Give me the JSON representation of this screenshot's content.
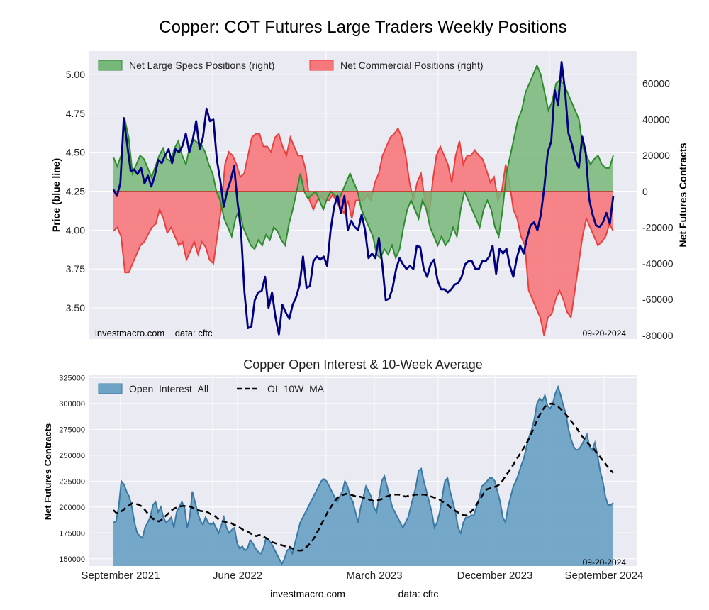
{
  "page": {
    "title": "Copper: COT Futures Large Traders Weekly Positions",
    "footer_left": "investmacro.com",
    "footer_right": "data: cftc"
  },
  "chart_data": [
    {
      "type": "line",
      "panel": "top",
      "ylabel_left": "Price (blue line)",
      "ylabel_right": "Net Futures Contracts",
      "ylim_left": [
        3.3,
        5.15
      ],
      "ylim_right": [
        -82000,
        78000
      ],
      "yticks_left": [
        "3.50",
        "3.75",
        "4.00",
        "4.25",
        "4.50",
        "4.75",
        "5.00"
      ],
      "yticks_right": [
        "-80000",
        "-60000",
        "-40000",
        "-20000",
        "0",
        "20000",
        "40000",
        "60000"
      ],
      "grid": true,
      "legend_position": "top-left",
      "watermark": "investmacro.com    data: cftc",
      "date_label": "09-20-2024",
      "colors": {
        "specs_fill": "#77b779",
        "specs_line": "#2e8b2e",
        "comm_fill": "#f7787b",
        "comm_line": "#e8403f",
        "price_line": "#00007f",
        "bg": "#eaeaf2"
      },
      "series": [
        {
          "name": "Net Large Specs Positions (right)",
          "axis": "right",
          "kind": "area",
          "values": [
            19000,
            14000,
            20000,
            40000,
            30000,
            10000,
            15000,
            20000,
            18000,
            13000,
            8000,
            14000,
            20000,
            24000,
            18000,
            17000,
            24000,
            28000,
            20000,
            15000,
            25000,
            29000,
            27000,
            26000,
            22000,
            15000,
            10000,
            0,
            -5000,
            -15000,
            -20000,
            -25000,
            -15000,
            -10000,
            -20000,
            -25000,
            -30000,
            -32000,
            -27000,
            -30000,
            -24000,
            -27000,
            -20000,
            -22000,
            -27000,
            -30000,
            -18000,
            -10000,
            0,
            10000,
            0,
            -4000,
            -2000,
            0,
            -5000,
            -10000,
            -4000,
            0,
            -2000,
            -5000,
            0,
            5000,
            10000,
            5000,
            0,
            -10000,
            -15000,
            -20000,
            -25000,
            -35000,
            -37000,
            -32000,
            -35000,
            -30000,
            -37000,
            -32000,
            -20000,
            -10000,
            -5000,
            -10000,
            -15000,
            -5000,
            -10000,
            -20000,
            -25000,
            -30000,
            -25000,
            -30000,
            -27000,
            -20000,
            -25000,
            -10000,
            0,
            -5000,
            -10000,
            -15000,
            -20000,
            -10000,
            -5000,
            -10000,
            -20000,
            -25000,
            -10000,
            10000,
            20000,
            30000,
            40000,
            45000,
            55000,
            60000,
            65000,
            70000,
            65000,
            55000,
            45000,
            50000,
            60000,
            62000,
            60000,
            55000,
            50000,
            45000,
            40000,
            25000,
            20000,
            15000,
            18000,
            20000,
            15000,
            13000,
            13000,
            20000
          ]
        },
        {
          "name": "Net Commercial Positions (right)",
          "axis": "right",
          "kind": "area",
          "values": [
            -22000,
            -20000,
            -25000,
            -45000,
            -45000,
            -40000,
            -35000,
            -30000,
            -28000,
            -24000,
            -20000,
            -18000,
            -10000,
            -15000,
            -23000,
            -20000,
            -25000,
            -30000,
            -28000,
            -38000,
            -33000,
            -28000,
            -35000,
            -28000,
            -31000,
            -38000,
            -40000,
            -25000,
            -10000,
            15000,
            22000,
            20000,
            15000,
            8000,
            10000,
            20000,
            30000,
            32000,
            32000,
            25000,
            25000,
            22000,
            30000,
            32000,
            25000,
            20000,
            30000,
            25000,
            20000,
            20000,
            12000,
            -5000,
            -10000,
            -5000,
            -3000,
            -5000,
            -5000,
            -2000,
            -5000,
            -10000,
            -12000,
            -5000,
            -15000,
            -5000,
            -5000,
            -5000,
            -2000,
            -5000,
            5000,
            10000,
            20000,
            25000,
            30000,
            32000,
            35000,
            30000,
            20000,
            5000,
            -5000,
            5000,
            10000,
            -5000,
            -15000,
            5000,
            20000,
            25000,
            20000,
            15000,
            5000,
            20000,
            28000,
            15000,
            20000,
            20000,
            23000,
            20000,
            18000,
            12000,
            5000,
            8000,
            -5000,
            0,
            15000,
            5000,
            -10000,
            -15000,
            -25000,
            -30000,
            -55000,
            -60000,
            -65000,
            -70000,
            -80000,
            -70000,
            -68000,
            -60000,
            -55000,
            -60000,
            -67000,
            -70000,
            -55000,
            -40000,
            -25000,
            -15000,
            -20000,
            -25000,
            -30000,
            -28000,
            -25000,
            -18000,
            -22000
          ]
        },
        {
          "name": "Price",
          "axis": "left",
          "kind": "line",
          "values": [
            4.26,
            4.22,
            4.3,
            4.72,
            4.55,
            4.38,
            4.39,
            4.36,
            4.4,
            4.3,
            4.35,
            4.28,
            4.35,
            4.45,
            4.43,
            4.48,
            4.52,
            4.43,
            4.52,
            4.5,
            4.54,
            4.62,
            4.5,
            4.58,
            4.7,
            4.52,
            4.6,
            4.78,
            4.7,
            4.71,
            4.45,
            4.32,
            4.15,
            4.25,
            4.32,
            4.41,
            4.18,
            4.0,
            3.6,
            3.37,
            3.38,
            3.55,
            3.6,
            3.61,
            3.7,
            3.5,
            3.6,
            3.44,
            3.33,
            3.52,
            3.47,
            3.43,
            3.52,
            3.57,
            3.65,
            3.83,
            3.63,
            3.64,
            3.8,
            3.83,
            3.81,
            3.83,
            3.77,
            4.0,
            4.15,
            4.22,
            4.11,
            4.22,
            4.0,
            4.06,
            4.02,
            4.0,
            4.1,
            4.0,
            3.82,
            3.85,
            3.82,
            3.95,
            3.78,
            3.55,
            3.56,
            3.63,
            3.75,
            3.82,
            3.78,
            3.75,
            3.77,
            3.75,
            3.9,
            3.89,
            3.75,
            3.7,
            3.78,
            3.81,
            3.68,
            3.62,
            3.62,
            3.6,
            3.62,
            3.65,
            3.66,
            3.7,
            3.78,
            3.8,
            3.8,
            3.75,
            3.75,
            3.8,
            3.8,
            3.83,
            3.9,
            3.72,
            3.88,
            3.85,
            3.88,
            3.77,
            3.7,
            3.82,
            3.9,
            3.85,
            3.95,
            4.03,
            4.05,
            4.0,
            4.1,
            4.28,
            4.5,
            4.57,
            4.9,
            4.8,
            5.08,
            4.9,
            4.62,
            4.55,
            4.45,
            4.4,
            4.6,
            4.5,
            4.2,
            4.1,
            4.03,
            4.02,
            4.05,
            4.11,
            4.04,
            4.22
          ]
        }
      ]
    },
    {
      "type": "area",
      "panel": "bottom",
      "title": "Copper Open Interest & 10-Week Average",
      "ylabel": "Net Futures Contracts",
      "ylim": [
        143000,
        328000
      ],
      "yticks": [
        "150000",
        "175000",
        "200000",
        "225000",
        "250000",
        "275000",
        "300000",
        "325000"
      ],
      "x_tick_labels": [
        "September 2021",
        "June 2022",
        "March 2023",
        "December 2023",
        "September 2024"
      ],
      "grid": true,
      "legend_position": "top-left",
      "date_label": "09-20-2024",
      "colors": {
        "oi_fill": "#6fa3c6",
        "oi_line": "#3a79a3",
        "ma_line": "#000000",
        "bg": "#eaeaf2"
      },
      "series": [
        {
          "name": "Open_Interest_All",
          "kind": "area",
          "values": [
            185000,
            186000,
            200000,
            225000,
            222000,
            215000,
            210000,
            200000,
            185000,
            175000,
            172000,
            170000,
            180000,
            185000,
            190000,
            202000,
            205000,
            195000,
            200000,
            190000,
            185000,
            187000,
            190000,
            180000,
            195000,
            200000,
            205000,
            200000,
            180000,
            190000,
            215000,
            205000,
            195000,
            187000,
            183000,
            190000,
            185000,
            183000,
            185000,
            180000,
            175000,
            182000,
            190000,
            180000,
            175000,
            178000,
            180000,
            165000,
            160000,
            162000,
            158000,
            160000,
            168000,
            165000,
            160000,
            157000,
            155000,
            160000,
            170000,
            168000,
            165000,
            160000,
            155000,
            150000,
            145000,
            150000,
            158000,
            160000,
            155000,
            165000,
            175000,
            185000,
            190000,
            195000,
            200000,
            205000,
            210000,
            215000,
            220000,
            225000,
            227000,
            225000,
            220000,
            215000,
            210000,
            205000,
            210000,
            215000,
            225000,
            220000,
            210000,
            205000,
            195000,
            185000,
            200000,
            210000,
            220000,
            215000,
            210000,
            200000,
            195000,
            210000,
            225000,
            230000,
            220000,
            210000,
            200000,
            195000,
            190000,
            185000,
            180000,
            185000,
            190000,
            200000,
            210000,
            220000,
            235000,
            237000,
            225000,
            215000,
            205000,
            195000,
            180000,
            185000,
            195000,
            210000,
            225000,
            228000,
            215000,
            205000,
            195000,
            180000,
            175000,
            185000,
            190000,
            190000,
            192000,
            192000,
            200000,
            208000,
            220000,
            222000,
            225000,
            228000,
            228000,
            225000,
            215000,
            205000,
            190000,
            185000,
            200000,
            210000,
            220000,
            225000,
            232000,
            240000,
            247000,
            258000,
            268000,
            275000,
            285000,
            300000,
            305000,
            302000,
            308000,
            298000,
            295000,
            300000,
            310000,
            316000,
            308000,
            298000,
            290000,
            275000,
            265000,
            258000,
            255000,
            256000,
            260000,
            265000,
            270000,
            258000,
            255000,
            262000,
            250000,
            235000,
            225000,
            210000,
            202000,
            202000,
            204000
          ]
        },
        {
          "name": "OI_10W_MA",
          "kind": "dashed-line",
          "values": [
            197000,
            194000,
            195000,
            197000,
            200000,
            202000,
            204000,
            203000,
            202000,
            200000,
            196000,
            192000,
            189000,
            187000,
            186000,
            188000,
            191000,
            194000,
            197000,
            199000,
            200000,
            201000,
            201000,
            201000,
            200000,
            198000,
            197000,
            196000,
            196000,
            195000,
            193000,
            192000,
            189000,
            187000,
            186000,
            185000,
            185000,
            183000,
            182000,
            180000,
            178000,
            177000,
            175000,
            173000,
            172000,
            173000,
            172000,
            170000,
            168000,
            166000,
            165000,
            164000,
            163000,
            162000,
            162000,
            160000,
            159000,
            158000,
            158000,
            160000,
            163000,
            166000,
            171000,
            177000,
            183000,
            189000,
            195000,
            200000,
            205000,
            209000,
            211000,
            212000,
            213000,
            212000,
            211000,
            210000,
            210000,
            209000,
            208000,
            207000,
            206000,
            206000,
            207000,
            208000,
            210000,
            211000,
            212000,
            212000,
            212000,
            211000,
            210000,
            211000,
            211000,
            212000,
            212000,
            212000,
            212000,
            211000,
            210000,
            209000,
            208000,
            206000,
            204000,
            202000,
            199000,
            197000,
            195000,
            193000,
            192000,
            192000,
            195000,
            198000,
            203000,
            208000,
            213000,
            217000,
            218000,
            219000,
            220000,
            222000,
            226000,
            231000,
            235000,
            240000,
            245000,
            250000,
            255000,
            260000,
            266000,
            273000,
            280000,
            287000,
            293000,
            297000,
            299000,
            300000,
            299000,
            297000,
            294000,
            291000,
            287000,
            283000,
            279000,
            275000,
            270000,
            266000,
            262000,
            259000,
            256000,
            252000,
            248000,
            244000,
            240000,
            236000,
            233000
          ]
        }
      ]
    }
  ]
}
